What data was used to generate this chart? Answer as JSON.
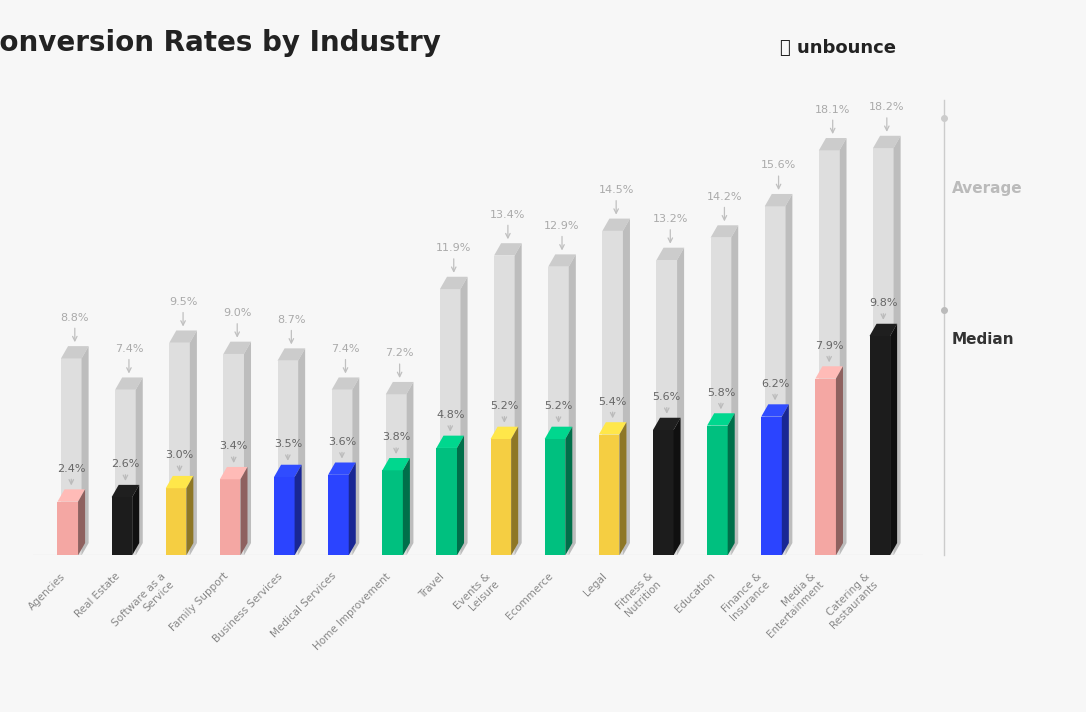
{
  "categories": [
    "Agencies",
    "Real Estate",
    "Software as a\nService",
    "Family Support",
    "Business Services",
    "Medical Services",
    "Home Improvement",
    "Travel",
    "Events &\nLeisure",
    "Ecommerce",
    "Legal",
    "Fitness &\nNutrition",
    "Education",
    "Finance &\nInsurance",
    "Media &\nEntertainment",
    "Catering &\nRestaurants"
  ],
  "medians": [
    2.4,
    2.6,
    3.0,
    3.4,
    3.5,
    3.6,
    3.8,
    4.8,
    5.2,
    5.2,
    5.4,
    5.6,
    5.8,
    6.2,
    7.9,
    9.8
  ],
  "averages": [
    8.8,
    7.4,
    9.5,
    9.0,
    8.7,
    7.4,
    7.2,
    11.9,
    13.4,
    12.9,
    14.5,
    13.2,
    14.2,
    15.6,
    18.1,
    18.2
  ],
  "bar_colors": [
    "#F4A7A3",
    "#1C1C1C",
    "#F5CE42",
    "#F4A7A3",
    "#2B44FF",
    "#2B44FF",
    "#00C07F",
    "#00C07F",
    "#F5CE42",
    "#00C07F",
    "#F5CE42",
    "#1C1C1C",
    "#00C07F",
    "#2B44FF",
    "#F4A7A3",
    "#1C1C1C"
  ],
  "avg_bar_color": "#DEDEDE",
  "avg_top_color": "#CACACA",
  "avg_side_color": "#C4C4C4",
  "background_color": "#F7F7F7",
  "title": "Conversion Rates by Industry",
  "title_fontsize": 20,
  "avg_label_color": "#AAAAAA",
  "med_label_color": "#666666",
  "xlabel_color": "#888888"
}
